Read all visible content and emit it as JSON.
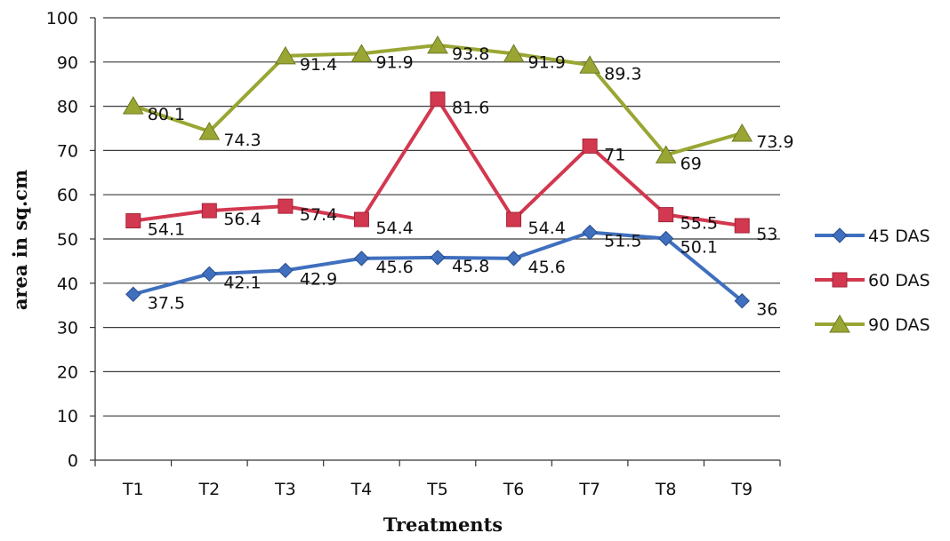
{
  "chart_data": {
    "type": "line",
    "title": "",
    "xlabel": "Treatments",
    "ylabel": "area in sq.cm",
    "ylim": [
      0,
      100
    ],
    "yticks": [
      0,
      10,
      20,
      30,
      40,
      50,
      60,
      70,
      80,
      90,
      100
    ],
    "categories": [
      "T1",
      "T2",
      "T3",
      "T4",
      "T5",
      "T6",
      "T7",
      "T8",
      "T9"
    ],
    "grid": true,
    "legend_position": "right",
    "series": [
      {
        "name": "45  DAS",
        "color": "#3f6fbe",
        "marker": "diamond",
        "values": [
          37.5,
          42.1,
          42.9,
          45.6,
          45.8,
          45.6,
          51.5,
          50.1,
          36
        ],
        "labels": [
          "37.5",
          "42.1",
          "42.9",
          "45.6",
          "45.8",
          "45.6",
          "51.5",
          "50.1",
          "36"
        ]
      },
      {
        "name": "60  DAS",
        "color": "#d2384f",
        "marker": "square",
        "values": [
          54.1,
          56.4,
          57.4,
          54.4,
          81.6,
          54.4,
          71,
          55.5,
          53
        ],
        "labels": [
          "54.1",
          "56.4",
          "57.4",
          "54.4",
          "81.6",
          "54.4",
          "71",
          "55.5",
          "53"
        ]
      },
      {
        "name": "90  DAS",
        "color": "#9aa633",
        "marker": "triangle",
        "values": [
          80.1,
          74.3,
          91.4,
          91.9,
          93.8,
          91.9,
          89.3,
          69,
          73.9
        ],
        "labels": [
          "80.1",
          "74.3",
          "91.4",
          "91.9",
          "93.8",
          "91.9",
          "89.3",
          "69",
          "73.9"
        ]
      }
    ]
  }
}
